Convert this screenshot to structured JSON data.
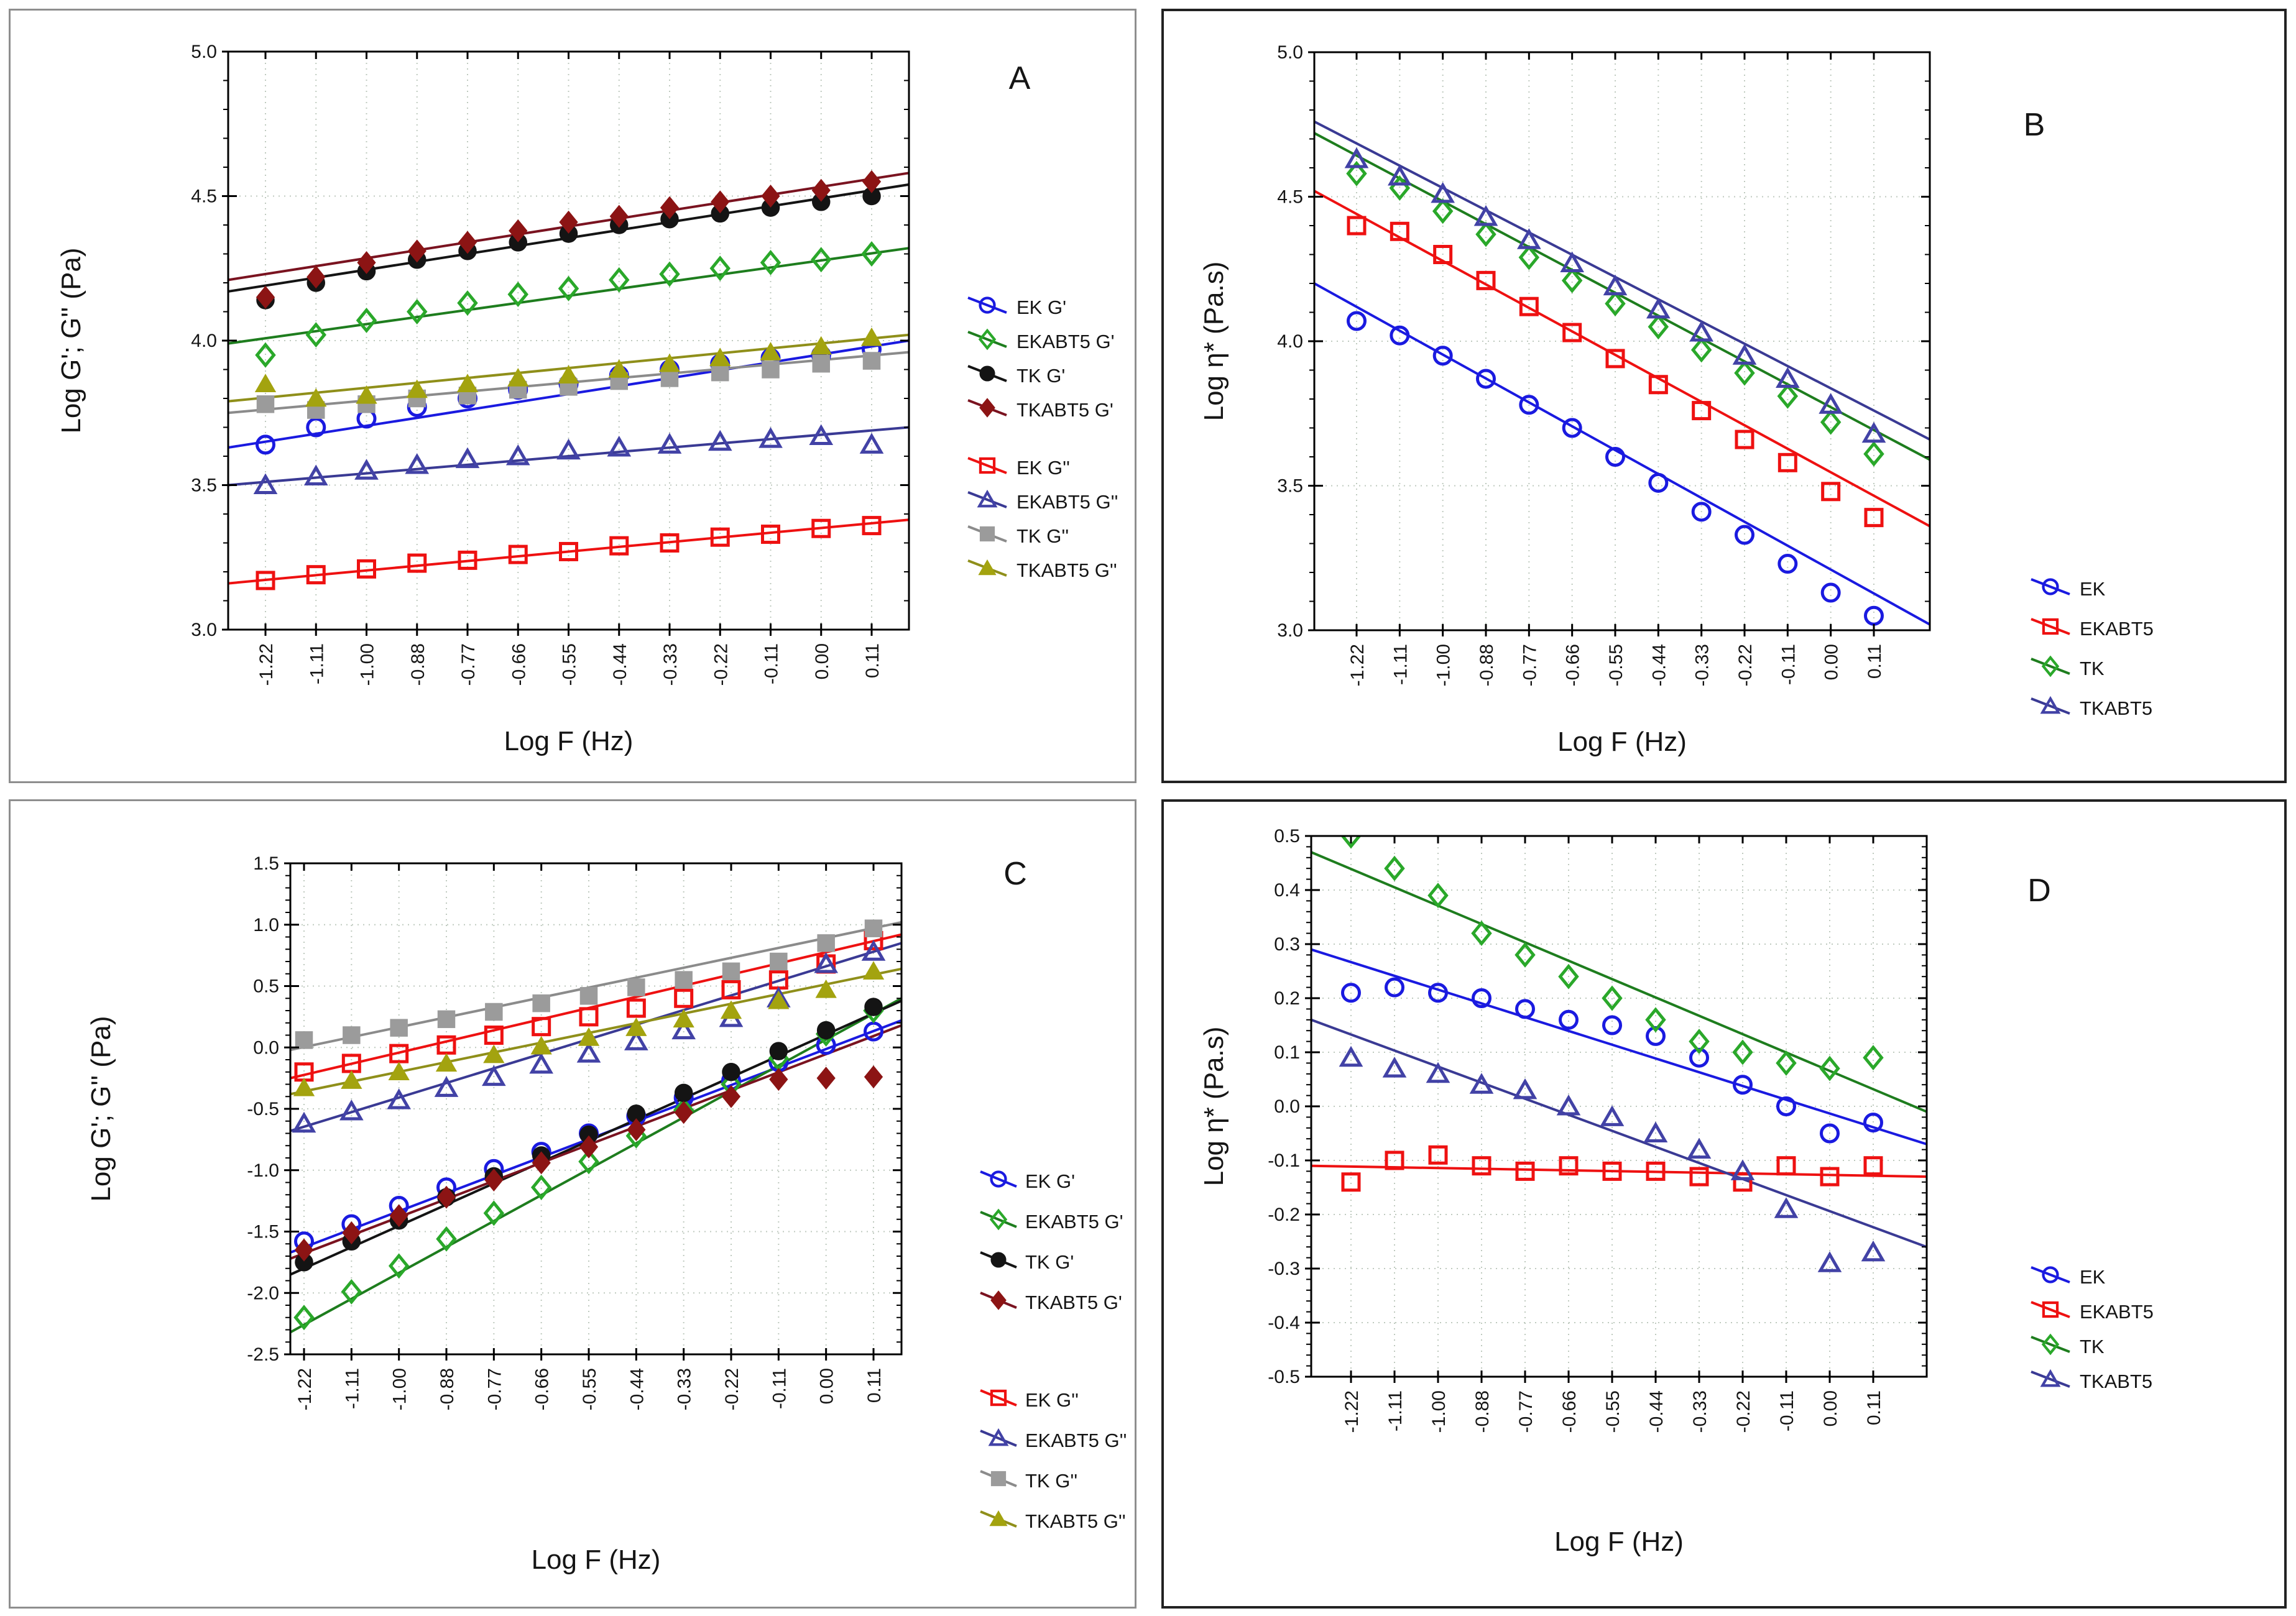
{
  "figure": {
    "background": "#ffffff",
    "left_column_border_color": "#8e8e8e",
    "right_column_border_color": "#222222"
  },
  "chart_data": {
    "type": "scatter",
    "xlabel": "Log F (Hz)",
    "x_tick_labels": [
      "-1.22",
      "-1.11",
      "-1.00",
      "-0.88",
      "-0.77",
      "-0.66",
      "-0.55",
      "-0.44",
      "-0.33",
      "-0.22",
      "-0.11",
      "0.00",
      "0.11"
    ],
    "x_values": [
      -1.22,
      -1.11,
      -1.0,
      -0.88,
      -0.77,
      -0.66,
      -0.55,
      -0.44,
      -0.33,
      -0.22,
      -0.11,
      0.0,
      0.11
    ],
    "grid": "both-dashed",
    "panels": [
      {
        "id": "A",
        "letter": "A",
        "ylabel": "Log G'; G'' (Pa)",
        "ylim": [
          3.0,
          5.0
        ],
        "ytick_labels": [
          "5.0",
          "4.5",
          "4.0",
          "3.5",
          "3.0"
        ],
        "legend_groups": [
          [
            "EK G'",
            "EKABT5 G'",
            "TK G'",
            "TKABT5 G'"
          ],
          [
            "EK G''",
            "EKABT5 G''",
            "TK G''",
            "TKABT5 G''"
          ]
        ],
        "series": [
          {
            "name": "EK G'",
            "marker": "circle_open",
            "color": "#1a1ae0",
            "trend_line": {
              "left": 3.63,
              "right": 4.0
            },
            "values": [
              3.64,
              3.7,
              3.73,
              3.77,
              3.8,
              3.83,
              3.85,
              3.88,
              3.9,
              3.92,
              3.94,
              3.95,
              3.97
            ]
          },
          {
            "name": "EKABT5 G'",
            "marker": "diamond_open",
            "color": "#2aa82a",
            "trend_color": "#1e7d1e",
            "trend_line": {
              "left": 3.99,
              "right": 4.32
            },
            "values": [
              3.95,
              4.02,
              4.07,
              4.1,
              4.13,
              4.16,
              4.18,
              4.21,
              4.23,
              4.25,
              4.27,
              4.28,
              4.3
            ]
          },
          {
            "name": "TK G'",
            "marker": "circle_filled",
            "color": "#141414",
            "trend_line": {
              "left": 4.17,
              "right": 4.54
            },
            "values": [
              4.14,
              4.2,
              4.24,
              4.28,
              4.31,
              4.34,
              4.37,
              4.4,
              4.42,
              4.44,
              4.46,
              4.48,
              4.5
            ]
          },
          {
            "name": "TKABT5 G'",
            "marker": "diamond_filled",
            "color": "#8c1414",
            "trend_color": "#7a1320",
            "trend_line": {
              "left": 4.21,
              "right": 4.58
            },
            "values": [
              4.15,
              4.22,
              4.27,
              4.31,
              4.34,
              4.38,
              4.41,
              4.43,
              4.46,
              4.48,
              4.5,
              4.52,
              4.55
            ]
          },
          {
            "name": "EK G''",
            "marker": "square_open",
            "color": "#ee1111",
            "trend_line": {
              "left": 3.16,
              "right": 3.38
            },
            "values": [
              3.17,
              3.19,
              3.21,
              3.23,
              3.24,
              3.26,
              3.27,
              3.29,
              3.3,
              3.32,
              3.33,
              3.35,
              3.36
            ]
          },
          {
            "name": "EKABT5 G''",
            "marker": "triangle_open",
            "color": "#4242a6",
            "trend_color": "#3a3a94",
            "trend_line": {
              "left": 3.5,
              "right": 3.7
            },
            "values": [
              3.5,
              3.53,
              3.55,
              3.57,
              3.59,
              3.6,
              3.62,
              3.63,
              3.64,
              3.65,
              3.66,
              3.67,
              3.64
            ]
          },
          {
            "name": "TK G''",
            "marker": "square_filled",
            "color": "#9b9b9b",
            "trend_color": "#8b8b8b",
            "trend_line": {
              "left": 3.75,
              "right": 3.96
            },
            "values": [
              3.78,
              3.76,
              3.78,
              3.8,
              3.81,
              3.83,
              3.84,
              3.86,
              3.87,
              3.89,
              3.9,
              3.92,
              3.93
            ]
          },
          {
            "name": "TKABT5 G''",
            "marker": "triangle_filled",
            "color": "#a3a30f",
            "trend_color": "#8f8f1a",
            "trend_line": {
              "left": 3.79,
              "right": 4.02
            },
            "values": [
              3.85,
              3.8,
              3.81,
              3.83,
              3.85,
              3.87,
              3.88,
              3.9,
              3.92,
              3.94,
              3.96,
              3.98,
              4.01
            ]
          }
        ]
      },
      {
        "id": "B",
        "letter": "B",
        "ylabel": "Log η* (Pa.s)",
        "ylim": [
          3.0,
          5.0
        ],
        "ytick_labels": [
          "5.0",
          "4.5",
          "4.0",
          "3.5",
          "3.0"
        ],
        "legend_groups": [
          [
            "EK",
            "EKABT5",
            "TK",
            "TKABT5"
          ]
        ],
        "series": [
          {
            "name": "EK",
            "marker": "circle_open",
            "color": "#1a1ae0",
            "trend_line": {
              "left": 4.2,
              "right": 3.02
            },
            "values": [
              4.07,
              4.02,
              3.95,
              3.87,
              3.78,
              3.7,
              3.6,
              3.51,
              3.41,
              3.33,
              3.23,
              3.13,
              3.05
            ]
          },
          {
            "name": "EKABT5",
            "marker": "square_open",
            "color": "#ee1111",
            "trend_line": {
              "left": 4.52,
              "right": 3.36
            },
            "values": [
              4.4,
              4.38,
              4.3,
              4.21,
              4.12,
              4.03,
              3.94,
              3.85,
              3.76,
              3.66,
              3.58,
              3.48,
              3.39
            ]
          },
          {
            "name": "TK",
            "marker": "diamond_open",
            "color": "#2aa82a",
            "trend_color": "#1e7d1e",
            "trend_line": {
              "left": 4.72,
              "right": 3.59
            },
            "values": [
              4.58,
              4.53,
              4.45,
              4.37,
              4.29,
              4.21,
              4.13,
              4.05,
              3.97,
              3.89,
              3.81,
              3.72,
              3.61
            ]
          },
          {
            "name": "TKABT5",
            "marker": "triangle_open",
            "color": "#4242a6",
            "trend_color": "#3a3a94",
            "trend_line": {
              "left": 4.76,
              "right": 3.66
            },
            "values": [
              4.63,
              4.57,
              4.51,
              4.43,
              4.35,
              4.27,
              4.19,
              4.11,
              4.03,
              3.95,
              3.87,
              3.78,
              3.68
            ]
          }
        ]
      },
      {
        "id": "C",
        "letter": "C",
        "ylabel": "Log G'; G'' (Pa)",
        "ylim": [
          -2.5,
          1.5
        ],
        "ytick_labels": [
          "1.5",
          "1.0",
          "0.5",
          "0.0",
          "-0.5",
          "-1.0",
          "-1.5",
          "-2.0",
          "-2.5"
        ],
        "legend_groups": [
          [
            "EK G'",
            "EKABT5 G'",
            "TK G'",
            "TKABT5 G'"
          ],
          [
            "EK G''",
            "EKABT5 G''",
            "TK G''",
            "TKABT5 G''"
          ]
        ],
        "series": [
          {
            "name": "EK G'",
            "marker": "circle_open",
            "color": "#1a1ae0",
            "trend_line": {
              "left": -1.67,
              "right": 0.22
            },
            "values": [
              -1.58,
              -1.44,
              -1.29,
              -1.14,
              -0.99,
              -0.85,
              -0.7,
              -0.56,
              -0.41,
              -0.27,
              -0.12,
              0.02,
              0.13
            ]
          },
          {
            "name": "EKABT5 G'",
            "marker": "diamond_open",
            "color": "#2aa82a",
            "trend_color": "#1e7d1e",
            "trend_line": {
              "left": -2.32,
              "right": 0.4
            },
            "values": [
              -2.2,
              -1.99,
              -1.78,
              -1.56,
              -1.35,
              -1.14,
              -0.93,
              -0.72,
              -0.51,
              -0.3,
              -0.09,
              0.11,
              0.3
            ]
          },
          {
            "name": "TK G'",
            "marker": "circle_filled",
            "color": "#141414",
            "trend_line": {
              "left": -1.85,
              "right": 0.38
            },
            "values": [
              -1.75,
              -1.58,
              -1.41,
              -1.22,
              -1.05,
              -0.88,
              -0.71,
              -0.54,
              -0.37,
              -0.2,
              -0.03,
              0.14,
              0.33
            ]
          },
          {
            "name": "TKABT5 G'",
            "marker": "diamond_filled",
            "color": "#8c1414",
            "trend_color": "#7a1320",
            "trend_line": {
              "left": -1.72,
              "right": 0.18
            },
            "values": [
              -1.65,
              -1.51,
              -1.37,
              -1.22,
              -1.08,
              -0.94,
              -0.81,
              -0.67,
              -0.53,
              -0.4,
              -0.26,
              -0.25,
              -0.24
            ]
          },
          {
            "name": "EK G''",
            "marker": "square_open",
            "color": "#ee1111",
            "trend_line": {
              "left": -0.25,
              "right": 0.92
            },
            "values": [
              -0.2,
              -0.13,
              -0.05,
              0.02,
              0.1,
              0.17,
              0.25,
              0.32,
              0.4,
              0.47,
              0.55,
              0.68,
              0.87
            ]
          },
          {
            "name": "EKABT5 G''",
            "marker": "triangle_open",
            "color": "#4242a6",
            "trend_color": "#3a3a94",
            "trend_line": {
              "left": -0.68,
              "right": 0.85
            },
            "values": [
              -0.62,
              -0.52,
              -0.43,
              -0.33,
              -0.24,
              -0.14,
              -0.05,
              0.05,
              0.14,
              0.24,
              0.4,
              0.68,
              0.78
            ]
          },
          {
            "name": "TK G''",
            "marker": "square_filled",
            "color": "#9b9b9b",
            "trend_color": "#8b8b8b",
            "trend_line": {
              "left": -0.02,
              "right": 1.02
            },
            "values": [
              0.06,
              0.1,
              0.16,
              0.23,
              0.29,
              0.36,
              0.42,
              0.49,
              0.55,
              0.62,
              0.7,
              0.85,
              0.97
            ]
          },
          {
            "name": "TKABT5 G''",
            "marker": "triangle_filled",
            "color": "#a3a30f",
            "trend_color": "#8f8f1a",
            "trend_line": {
              "left": -0.38,
              "right": 0.64
            },
            "values": [
              -0.33,
              -0.27,
              -0.2,
              -0.13,
              -0.06,
              0.01,
              0.08,
              0.16,
              0.23,
              0.3,
              0.38,
              0.47,
              0.62
            ]
          }
        ]
      },
      {
        "id": "D",
        "letter": "D",
        "ylabel": "Log η* (Pa.s)",
        "ylim": [
          -0.5,
          0.5
        ],
        "ytick_labels": [
          "0.5",
          "0.4",
          "0.3",
          "0.2",
          "0.1",
          "0.0",
          "-0.1",
          "-0.2",
          "-0.3",
          "-0.4",
          "-0.5"
        ],
        "legend_groups": [
          [
            "EK",
            "EKABT5",
            "TK",
            "TKABT5"
          ]
        ],
        "series": [
          {
            "name": "EK",
            "marker": "circle_open",
            "color": "#1a1ae0",
            "trend_line": {
              "left": 0.29,
              "right": -0.07
            },
            "values": [
              0.21,
              0.22,
              0.21,
              0.2,
              0.18,
              0.16,
              0.15,
              0.13,
              0.09,
              0.04,
              0.0,
              -0.05,
              -0.03
            ]
          },
          {
            "name": "EKABT5",
            "marker": "square_open",
            "color": "#ee1111",
            "trend_line": {
              "left": -0.11,
              "right": -0.13
            },
            "values": [
              -0.14,
              -0.1,
              -0.09,
              -0.11,
              -0.12,
              -0.11,
              -0.12,
              -0.12,
              -0.13,
              -0.14,
              -0.11,
              -0.13,
              -0.11
            ]
          },
          {
            "name": "TK",
            "marker": "diamond_open",
            "color": "#2aa82a",
            "trend_color": "#1e7d1e",
            "trend_line": {
              "left": 0.47,
              "right": -0.01
            },
            "values": [
              0.5,
              0.44,
              0.39,
              0.32,
              0.28,
              0.24,
              0.2,
              0.16,
              0.12,
              0.1,
              0.08,
              0.07,
              0.09
            ]
          },
          {
            "name": "TKABT5",
            "marker": "triangle_open",
            "color": "#4242a6",
            "trend_color": "#3a3a94",
            "trend_line": {
              "left": 0.16,
              "right": -0.26
            },
            "values": [
              0.09,
              0.07,
              0.06,
              0.04,
              0.03,
              0.0,
              -0.02,
              -0.05,
              -0.08,
              -0.12,
              -0.19,
              -0.29,
              -0.27
            ]
          }
        ]
      }
    ]
  }
}
